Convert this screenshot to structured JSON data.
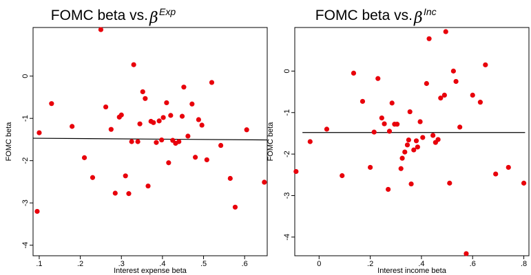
{
  "chart_data": [
    {
      "type": "scatter",
      "title_prefix": "FOMC beta vs. ",
      "title_symbol": "β",
      "title_superscript": "Exp",
      "xlabel": "Interest expense beta",
      "ylabel": "FOMC beta",
      "xlim": [
        0.085,
        0.655
      ],
      "ylim": [
        -4.25,
        1.15
      ],
      "xticks": [
        0.1,
        0.2,
        0.3,
        0.4,
        0.5,
        0.6
      ],
      "xtick_labels": [
        ".1",
        ".2",
        ".3",
        ".4",
        ".5",
        ".6"
      ],
      "yticks": [
        0,
        -1,
        -2,
        -3,
        -4
      ],
      "ytick_labels": [
        "0",
        "-1",
        "-2",
        "-3",
        "-4"
      ],
      "grid": false,
      "marker_color": "#e8000b",
      "fit_line": {
        "x": [
          0.085,
          0.655
        ],
        "y": [
          -1.47,
          -1.51
        ],
        "color": "#000000"
      },
      "points": [
        {
          "x": 0.095,
          "y": -3.2
        },
        {
          "x": 0.1,
          "y": -1.34
        },
        {
          "x": 0.13,
          "y": -0.65
        },
        {
          "x": 0.18,
          "y": -1.19
        },
        {
          "x": 0.21,
          "y": -1.93
        },
        {
          "x": 0.23,
          "y": -2.4
        },
        {
          "x": 0.25,
          "y": 1.1
        },
        {
          "x": 0.262,
          "y": -0.73
        },
        {
          "x": 0.275,
          "y": -1.26
        },
        {
          "x": 0.285,
          "y": -2.77
        },
        {
          "x": 0.295,
          "y": -0.97
        },
        {
          "x": 0.3,
          "y": -0.92
        },
        {
          "x": 0.31,
          "y": -2.36
        },
        {
          "x": 0.318,
          "y": -2.78
        },
        {
          "x": 0.325,
          "y": -1.55
        },
        {
          "x": 0.33,
          "y": 0.27
        },
        {
          "x": 0.34,
          "y": -1.55
        },
        {
          "x": 0.345,
          "y": -1.13
        },
        {
          "x": 0.352,
          "y": -0.37
        },
        {
          "x": 0.358,
          "y": -0.53
        },
        {
          "x": 0.365,
          "y": -2.6
        },
        {
          "x": 0.372,
          "y": -1.07
        },
        {
          "x": 0.378,
          "y": -1.1
        },
        {
          "x": 0.385,
          "y": -1.57
        },
        {
          "x": 0.392,
          "y": -1.06
        },
        {
          "x": 0.398,
          "y": -1.51
        },
        {
          "x": 0.402,
          "y": -0.98
        },
        {
          "x": 0.41,
          "y": -0.63
        },
        {
          "x": 0.415,
          "y": -2.05
        },
        {
          "x": 0.42,
          "y": -0.93
        },
        {
          "x": 0.425,
          "y": -1.52
        },
        {
          "x": 0.432,
          "y": -1.59
        },
        {
          "x": 0.44,
          "y": -1.55
        },
        {
          "x": 0.448,
          "y": -0.95
        },
        {
          "x": 0.452,
          "y": -0.26
        },
        {
          "x": 0.462,
          "y": -1.42
        },
        {
          "x": 0.472,
          "y": -0.66
        },
        {
          "x": 0.48,
          "y": -1.92
        },
        {
          "x": 0.488,
          "y": -1.03
        },
        {
          "x": 0.496,
          "y": -1.16
        },
        {
          "x": 0.508,
          "y": -1.98
        },
        {
          "x": 0.52,
          "y": -0.15
        },
        {
          "x": 0.542,
          "y": -1.64
        },
        {
          "x": 0.565,
          "y": -2.42
        },
        {
          "x": 0.577,
          "y": -3.1
        },
        {
          "x": 0.605,
          "y": -1.27
        },
        {
          "x": 0.648,
          "y": -2.51
        }
      ]
    },
    {
      "type": "scatter",
      "title_prefix": "FOMC beta vs. ",
      "title_symbol": "β",
      "title_superscript": "Inc",
      "xlabel": "Interest income beta",
      "ylabel": "FOMC beta",
      "xlim": [
        -0.095,
        0.82
      ],
      "ylim": [
        -4.45,
        1.05
      ],
      "xticks": [
        0,
        0.2,
        0.4,
        0.6,
        0.8
      ],
      "xtick_labels": [
        "0",
        ".2",
        ".4",
        ".6",
        ".8"
      ],
      "yticks": [
        0,
        -1,
        -2,
        -3,
        -4
      ],
      "ytick_labels": [
        "0",
        "-1",
        "-2",
        "-3",
        "-4"
      ],
      "grid": false,
      "marker_color": "#e8000b",
      "fit_line": {
        "x": [
          -0.065,
          0.805
        ],
        "y": [
          -1.48,
          -1.48
        ],
        "color": "#000000"
      },
      "points": [
        {
          "x": -0.09,
          "y": -2.42
        },
        {
          "x": -0.035,
          "y": -1.7
        },
        {
          "x": 0.03,
          "y": -1.4
        },
        {
          "x": 0.09,
          "y": -2.52
        },
        {
          "x": 0.135,
          "y": -0.05
        },
        {
          "x": 0.17,
          "y": -0.73
        },
        {
          "x": 0.2,
          "y": -2.32
        },
        {
          "x": 0.215,
          "y": -1.47
        },
        {
          "x": 0.23,
          "y": -0.18
        },
        {
          "x": 0.245,
          "y": -1.13
        },
        {
          "x": 0.255,
          "y": -1.27
        },
        {
          "x": 0.27,
          "y": -2.85
        },
        {
          "x": 0.275,
          "y": -1.45
        },
        {
          "x": 0.285,
          "y": -0.77
        },
        {
          "x": 0.295,
          "y": -1.28
        },
        {
          "x": 0.305,
          "y": -1.28
        },
        {
          "x": 0.32,
          "y": -2.35
        },
        {
          "x": 0.325,
          "y": -2.1
        },
        {
          "x": 0.335,
          "y": -1.95
        },
        {
          "x": 0.345,
          "y": -1.78
        },
        {
          "x": 0.35,
          "y": -1.66
        },
        {
          "x": 0.36,
          "y": -2.72
        },
        {
          "x": 0.355,
          "y": -0.98
        },
        {
          "x": 0.37,
          "y": -1.9
        },
        {
          "x": 0.38,
          "y": -1.68
        },
        {
          "x": 0.385,
          "y": -1.83
        },
        {
          "x": 0.395,
          "y": -1.22
        },
        {
          "x": 0.405,
          "y": -1.6
        },
        {
          "x": 0.42,
          "y": -0.3
        },
        {
          "x": 0.43,
          "y": 0.78
        },
        {
          "x": 0.445,
          "y": -1.55
        },
        {
          "x": 0.455,
          "y": -1.72
        },
        {
          "x": 0.465,
          "y": -1.65
        },
        {
          "x": 0.475,
          "y": -0.65
        },
        {
          "x": 0.49,
          "y": -0.58
        },
        {
          "x": 0.495,
          "y": 0.95
        },
        {
          "x": 0.51,
          "y": -2.7
        },
        {
          "x": 0.525,
          "y": 0.0
        },
        {
          "x": 0.535,
          "y": -0.25
        },
        {
          "x": 0.55,
          "y": -1.35
        },
        {
          "x": 0.575,
          "y": -4.4
        },
        {
          "x": 0.6,
          "y": -0.58
        },
        {
          "x": 0.63,
          "y": -0.75
        },
        {
          "x": 0.65,
          "y": 0.15
        },
        {
          "x": 0.69,
          "y": -2.48
        },
        {
          "x": 0.74,
          "y": -2.32
        },
        {
          "x": 0.8,
          "y": -2.7
        }
      ]
    }
  ]
}
